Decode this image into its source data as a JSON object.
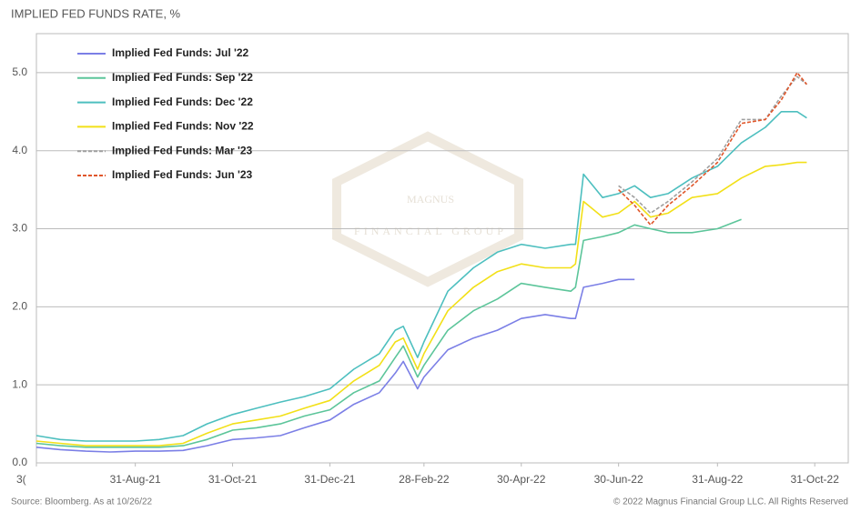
{
  "chart_data": {
    "type": "line",
    "title": "IMPLIED FED FUNDS RATE, %",
    "source": "Source: Bloomberg. As at 10/26/22",
    "copyright": "© 2022 Magnus Financial Group LLC. All Rights Reserved",
    "watermark": "MAGNUS",
    "watermark_sub": "FINANCIAL GROUP",
    "x": [
      "2021-06-30",
      "2021-07-15",
      "2021-07-31",
      "2021-08-15",
      "2021-08-31",
      "2021-09-15",
      "2021-09-30",
      "2021-10-15",
      "2021-10-31",
      "2021-11-15",
      "2021-11-30",
      "2021-12-15",
      "2021-12-31",
      "2022-01-15",
      "2022-01-31",
      "2022-02-10",
      "2022-02-15",
      "2022-02-24",
      "2022-02-28",
      "2022-03-15",
      "2022-03-31",
      "2022-04-15",
      "2022-04-30",
      "2022-05-15",
      "2022-05-31",
      "2022-06-03",
      "2022-06-08",
      "2022-06-20",
      "2022-06-30",
      "2022-07-10",
      "2022-07-20",
      "2022-07-31",
      "2022-08-15",
      "2022-08-31",
      "2022-09-15",
      "2022-09-30",
      "2022-10-10",
      "2022-10-20",
      "2022-10-26"
    ],
    "series": [
      {
        "name": "Implied Fed Funds: Jul '22",
        "color": "#7b7fe6",
        "dash": false,
        "values": [
          0.2,
          0.17,
          0.15,
          0.14,
          0.15,
          0.15,
          0.16,
          0.22,
          0.3,
          0.32,
          0.35,
          0.45,
          0.55,
          0.75,
          0.9,
          1.15,
          1.3,
          0.95,
          1.1,
          1.45,
          1.6,
          1.7,
          1.85,
          1.9,
          1.85,
          1.85,
          2.25,
          2.3,
          2.35,
          2.35,
          null,
          null,
          null,
          null,
          null,
          null,
          null,
          null,
          null
        ]
      },
      {
        "name": "Implied Fed Funds: Sep '22",
        "color": "#5cc59a",
        "dash": false,
        "values": [
          0.25,
          0.22,
          0.2,
          0.2,
          0.2,
          0.2,
          0.22,
          0.3,
          0.42,
          0.45,
          0.5,
          0.6,
          0.68,
          0.9,
          1.05,
          1.35,
          1.5,
          1.1,
          1.25,
          1.7,
          1.95,
          2.1,
          2.3,
          2.25,
          2.2,
          2.25,
          2.85,
          2.9,
          2.95,
          3.05,
          3.0,
          2.95,
          2.95,
          3.0,
          3.12,
          null,
          null,
          null,
          null
        ]
      },
      {
        "name": "Implied Fed Funds: Dec '22",
        "color": "#4dbfbf",
        "dash": false,
        "values": [
          0.35,
          0.3,
          0.28,
          0.28,
          0.28,
          0.3,
          0.35,
          0.5,
          0.62,
          0.7,
          0.78,
          0.85,
          0.95,
          1.2,
          1.4,
          1.7,
          1.75,
          1.35,
          1.55,
          2.2,
          2.5,
          2.7,
          2.8,
          2.75,
          2.8,
          2.8,
          3.7,
          3.4,
          3.45,
          3.55,
          3.4,
          3.45,
          3.65,
          3.8,
          4.1,
          4.3,
          4.5,
          4.5,
          4.42
        ]
      },
      {
        "name": "Implied Fed Funds: Nov '22",
        "color": "#f2e018",
        "dash": false,
        "values": [
          0.28,
          0.25,
          0.22,
          0.22,
          0.22,
          0.22,
          0.25,
          0.38,
          0.5,
          0.55,
          0.6,
          0.7,
          0.8,
          1.05,
          1.25,
          1.55,
          1.6,
          1.2,
          1.4,
          1.95,
          2.25,
          2.45,
          2.55,
          2.5,
          2.5,
          2.55,
          3.35,
          3.15,
          3.2,
          3.35,
          3.15,
          3.2,
          3.4,
          3.45,
          3.65,
          3.8,
          3.82,
          3.85,
          3.85
        ]
      },
      {
        "name": "Implied Fed Funds: Mar '23",
        "color": "#a0a0a0",
        "dash": true,
        "values": [
          null,
          null,
          null,
          null,
          null,
          null,
          null,
          null,
          null,
          null,
          null,
          null,
          null,
          null,
          null,
          null,
          null,
          null,
          null,
          null,
          null,
          null,
          null,
          null,
          null,
          null,
          null,
          null,
          3.55,
          3.4,
          3.2,
          3.35,
          3.6,
          3.9,
          4.4,
          4.4,
          4.7,
          4.95,
          4.85
        ]
      },
      {
        "name": "Implied Fed Funds: Jun '23",
        "color": "#e0562a",
        "dash": true,
        "values": [
          null,
          null,
          null,
          null,
          null,
          null,
          null,
          null,
          null,
          null,
          null,
          null,
          null,
          null,
          null,
          null,
          null,
          null,
          null,
          null,
          null,
          null,
          null,
          null,
          null,
          null,
          null,
          null,
          3.5,
          3.3,
          3.05,
          3.3,
          3.55,
          3.85,
          4.35,
          4.4,
          4.65,
          5.0,
          4.85
        ]
      }
    ],
    "xlim": [
      "2021-06-30",
      "2022-11-21"
    ],
    "xticks": [
      {
        "value": "2021-06-30",
        "label": "3("
      },
      {
        "value": "2021-08-31",
        "label": "31-Aug-21"
      },
      {
        "value": "2021-10-31",
        "label": "31-Oct-21"
      },
      {
        "value": "2021-12-31",
        "label": "31-Dec-21"
      },
      {
        "value": "2022-02-28",
        "label": "28-Feb-22"
      },
      {
        "value": "2022-04-30",
        "label": "30-Apr-22"
      },
      {
        "value": "2022-06-30",
        "label": "30-Jun-22"
      },
      {
        "value": "2022-08-31",
        "label": "31-Aug-22"
      },
      {
        "value": "2022-10-31",
        "label": "31-Oct-22"
      }
    ],
    "ylim": [
      0,
      5.5
    ],
    "yticks": [
      {
        "value": 0,
        "label": "0.0"
      },
      {
        "value": 1,
        "label": "1.0"
      },
      {
        "value": 2,
        "label": "2.0"
      },
      {
        "value": 3,
        "label": "3.0"
      },
      {
        "value": 4,
        "label": "4.0"
      },
      {
        "value": 5,
        "label": "5.0"
      }
    ],
    "grid": true
  }
}
